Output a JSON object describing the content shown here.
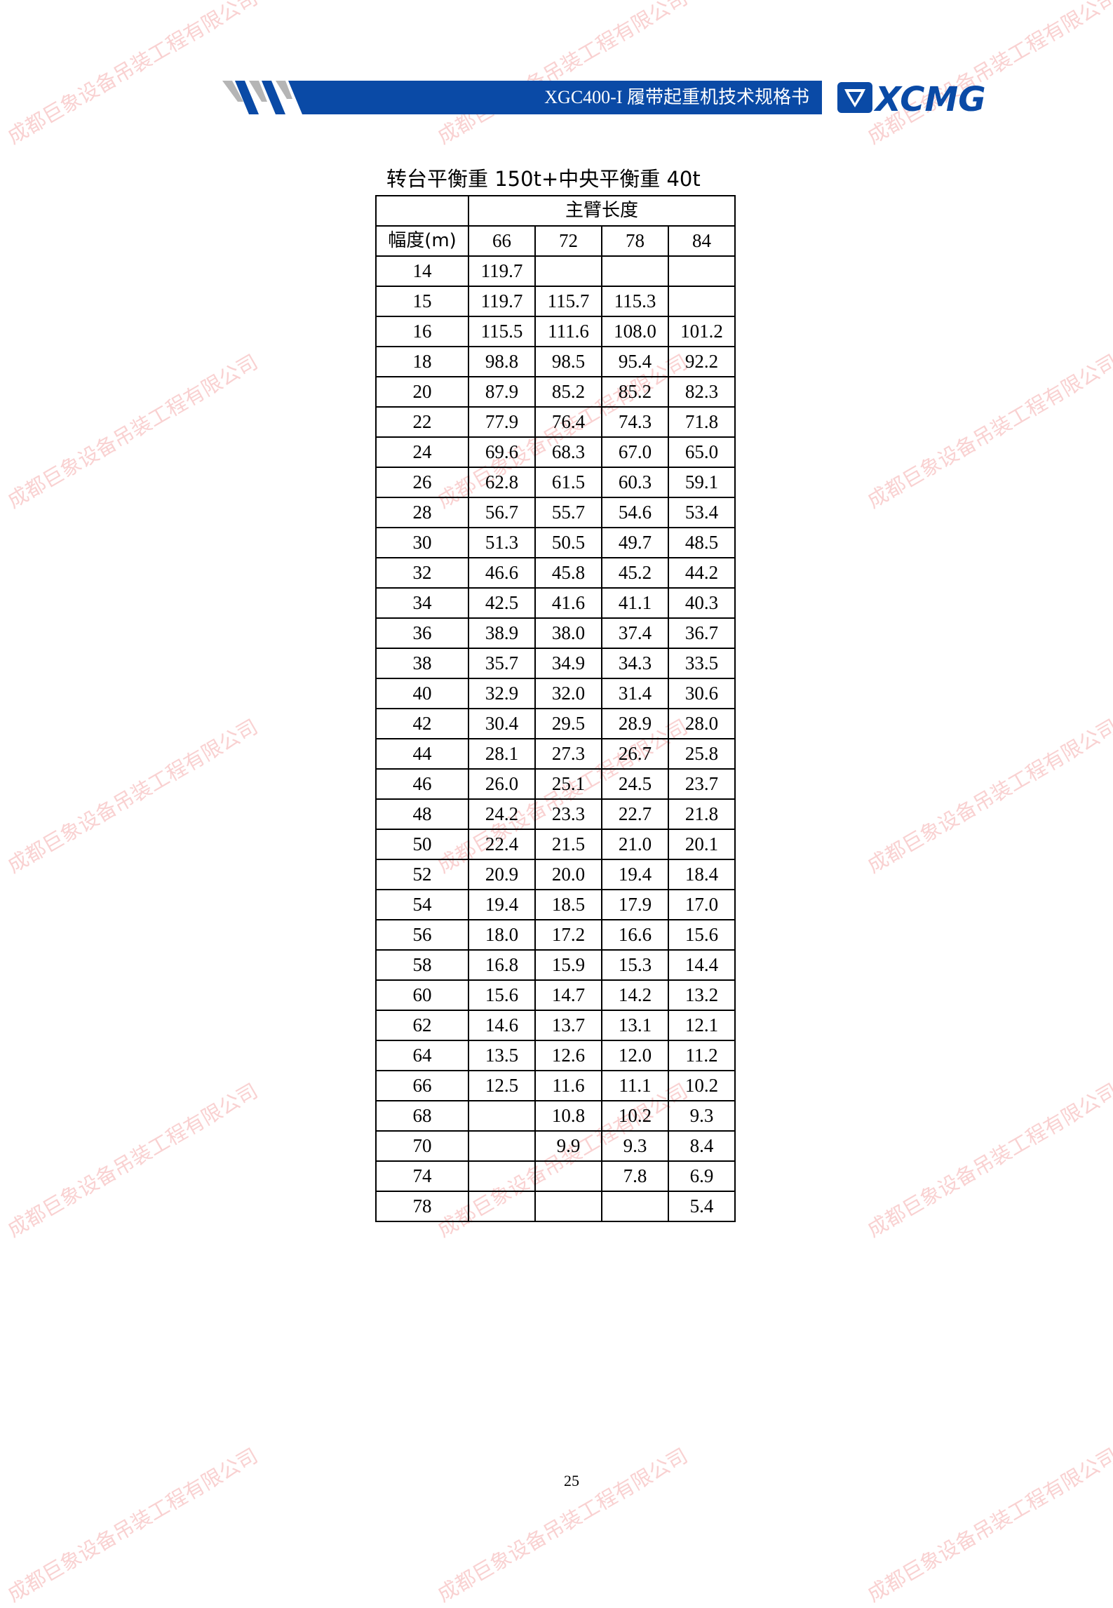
{
  "header": {
    "doc_title": "XGC400-I 履带起重机技术规格书",
    "logo_text": "XCMG",
    "brand_color": "#0a4aa6"
  },
  "table_title": "转台平衡重 150t+中央平衡重 40t",
  "table": {
    "group_header": "主臂长度",
    "row_header": "幅度(m)",
    "columns": [
      "66",
      "72",
      "78",
      "84"
    ],
    "rows": [
      [
        "14",
        "119.7",
        "",
        "",
        ""
      ],
      [
        "15",
        "119.7",
        "115.7",
        "115.3",
        ""
      ],
      [
        "16",
        "115.5",
        "111.6",
        "108.0",
        "101.2"
      ],
      [
        "18",
        "98.8",
        "98.5",
        "95.4",
        "92.2"
      ],
      [
        "20",
        "87.9",
        "85.2",
        "85.2",
        "82.3"
      ],
      [
        "22",
        "77.9",
        "76.4",
        "74.3",
        "71.8"
      ],
      [
        "24",
        "69.6",
        "68.3",
        "67.0",
        "65.0"
      ],
      [
        "26",
        "62.8",
        "61.5",
        "60.3",
        "59.1"
      ],
      [
        "28",
        "56.7",
        "55.7",
        "54.6",
        "53.4"
      ],
      [
        "30",
        "51.3",
        "50.5",
        "49.7",
        "48.5"
      ],
      [
        "32",
        "46.6",
        "45.8",
        "45.2",
        "44.2"
      ],
      [
        "34",
        "42.5",
        "41.6",
        "41.1",
        "40.3"
      ],
      [
        "36",
        "38.9",
        "38.0",
        "37.4",
        "36.7"
      ],
      [
        "38",
        "35.7",
        "34.9",
        "34.3",
        "33.5"
      ],
      [
        "40",
        "32.9",
        "32.0",
        "31.4",
        "30.6"
      ],
      [
        "42",
        "30.4",
        "29.5",
        "28.9",
        "28.0"
      ],
      [
        "44",
        "28.1",
        "27.3",
        "26.7",
        "25.8"
      ],
      [
        "46",
        "26.0",
        "25.1",
        "24.5",
        "23.7"
      ],
      [
        "48",
        "24.2",
        "23.3",
        "22.7",
        "21.8"
      ],
      [
        "50",
        "22.4",
        "21.5",
        "21.0",
        "20.1"
      ],
      [
        "52",
        "20.9",
        "20.0",
        "19.4",
        "18.4"
      ],
      [
        "54",
        "19.4",
        "18.5",
        "17.9",
        "17.0"
      ],
      [
        "56",
        "18.0",
        "17.2",
        "16.6",
        "15.6"
      ],
      [
        "58",
        "16.8",
        "15.9",
        "15.3",
        "14.4"
      ],
      [
        "60",
        "15.6",
        "14.7",
        "14.2",
        "13.2"
      ],
      [
        "62",
        "14.6",
        "13.7",
        "13.1",
        "12.1"
      ],
      [
        "64",
        "13.5",
        "12.6",
        "12.0",
        "11.2"
      ],
      [
        "66",
        "12.5",
        "11.6",
        "11.1",
        "10.2"
      ],
      [
        "68",
        "",
        "10.8",
        "10.2",
        "9.3"
      ],
      [
        "70",
        "",
        "9.9",
        "9.3",
        "8.4"
      ],
      [
        "74",
        "",
        "",
        "7.8",
        "6.9"
      ],
      [
        "78",
        "",
        "",
        "",
        "5.4"
      ]
    ]
  },
  "page_number": "25",
  "watermark": {
    "text": "成都巨象设备吊装工程有限公司",
    "color": "#eb5a5a"
  }
}
